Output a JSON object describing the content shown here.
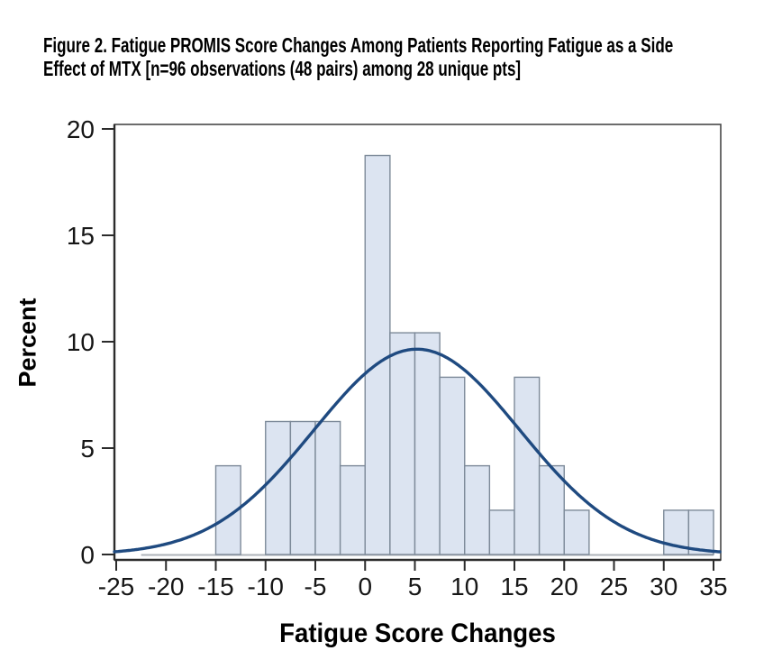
{
  "figure": {
    "title_line1": "Figure 2. Fatigue PROMIS Score Changes Among Patients Reporting Fatigue as a Side",
    "title_line2": "Effect of MTX [n=96 observations (48 pairs) among 28 unique pts]"
  },
  "chart_data": {
    "type": "bar",
    "subtype": "histogram_with_normal_curve",
    "title": "Figure 2. Fatigue PROMIS Score Changes Among Patients Reporting Fatigue as a Side Effect of MTX [n=96 observations (48 pairs) among 28 unique pts]",
    "xlabel": "Fatigue Score Changes",
    "ylabel": "Percent",
    "x_ticks": [
      -25,
      -20,
      -15,
      -10,
      -5,
      0,
      5,
      10,
      15,
      20,
      25,
      30,
      35
    ],
    "y_ticks": [
      0,
      5,
      10,
      15,
      20
    ],
    "x_range": [
      -25,
      35.7
    ],
    "ylim": [
      0,
      20.5
    ],
    "grid": "off",
    "legend": "none",
    "bin_width": 2.5,
    "bins": [
      {
        "start": -15,
        "percent": 4.17
      },
      {
        "start": -10,
        "percent": 6.25
      },
      {
        "start": -7.5,
        "percent": 6.25
      },
      {
        "start": -5,
        "percent": 6.25
      },
      {
        "start": -2.5,
        "percent": 4.17
      },
      {
        "start": 0,
        "percent": 18.75
      },
      {
        "start": 2.5,
        "percent": 10.42
      },
      {
        "start": 5,
        "percent": 10.42
      },
      {
        "start": 7.5,
        "percent": 8.33
      },
      {
        "start": 10,
        "percent": 4.17
      },
      {
        "start": 12.5,
        "percent": 2.08
      },
      {
        "start": 15,
        "percent": 8.33
      },
      {
        "start": 17.5,
        "percent": 4.17
      },
      {
        "start": 20,
        "percent": 2.08
      },
      {
        "start": 30,
        "percent": 2.08
      },
      {
        "start": 32.5,
        "percent": 2.08
      }
    ],
    "normal_curve": {
      "mean": 5.2,
      "sd": 10.33,
      "peak_percent": 9.65
    },
    "baseline_extent": [
      -22.5,
      35
    ],
    "colors": {
      "bar_fill": "#dce4f1",
      "bar_border": "#7d8a99",
      "curve": "#1f4a80",
      "baseline": "#aeb3b9",
      "frame": "#474747",
      "axis": "#2b2b2b",
      "tick_label": "#161616"
    }
  }
}
